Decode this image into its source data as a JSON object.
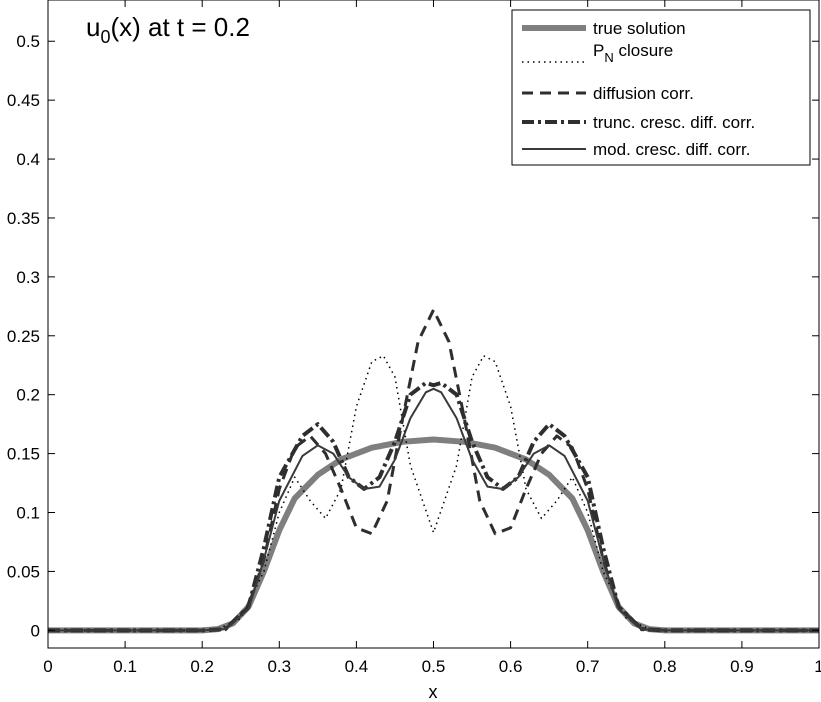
{
  "chart_data": {
    "type": "line",
    "xlabel": "x",
    "ylabel": "",
    "xlim": [
      0,
      1
    ],
    "ylim": [
      -0.015,
      0.535
    ],
    "x_ticks": [
      "0",
      "0.1",
      "0.2",
      "0.3",
      "0.4",
      "0.5",
      "0.6",
      "0.7",
      "0.8",
      "0.9",
      "1"
    ],
    "y_ticks": [
      "0",
      "0.05",
      "0.1",
      "0.15",
      "0.2",
      "0.25",
      "0.3",
      "0.35",
      "0.4",
      "0.45",
      "0.5"
    ],
    "annotation": {
      "base": "u",
      "sub": "0",
      "rest": "(x) at t = 0.2"
    },
    "grid": false,
    "legend_position": "top-right",
    "series": [
      {
        "name": "true solution",
        "style": "thick-solid",
        "color": "#7f7f7f",
        "points": [
          [
            0,
            0
          ],
          [
            0.2,
            0
          ],
          [
            0.22,
            0.001
          ],
          [
            0.24,
            0.006
          ],
          [
            0.26,
            0.02
          ],
          [
            0.28,
            0.05
          ],
          [
            0.3,
            0.085
          ],
          [
            0.32,
            0.112
          ],
          [
            0.35,
            0.132
          ],
          [
            0.38,
            0.145
          ],
          [
            0.42,
            0.155
          ],
          [
            0.46,
            0.16
          ],
          [
            0.5,
            0.162
          ],
          [
            0.54,
            0.16
          ],
          [
            0.58,
            0.155
          ],
          [
            0.62,
            0.145
          ],
          [
            0.65,
            0.132
          ],
          [
            0.68,
            0.112
          ],
          [
            0.7,
            0.085
          ],
          [
            0.72,
            0.05
          ],
          [
            0.74,
            0.02
          ],
          [
            0.76,
            0.006
          ],
          [
            0.78,
            0.001
          ],
          [
            0.8,
            0
          ],
          [
            1,
            0
          ]
        ]
      },
      {
        "name": "P_N closure",
        "label_main": "P",
        "label_sub": "N",
        "label_rest": " closure",
        "style": "dotted",
        "color": "#000000",
        "points": [
          [
            0,
            0
          ],
          [
            0.2,
            0
          ],
          [
            0.22,
            0.001
          ],
          [
            0.25,
            0.01
          ],
          [
            0.28,
            0.05
          ],
          [
            0.3,
            0.1
          ],
          [
            0.32,
            0.13
          ],
          [
            0.34,
            0.11
          ],
          [
            0.36,
            0.095
          ],
          [
            0.38,
            0.12
          ],
          [
            0.4,
            0.19
          ],
          [
            0.42,
            0.228
          ],
          [
            0.435,
            0.233
          ],
          [
            0.45,
            0.215
          ],
          [
            0.47,
            0.14
          ],
          [
            0.5,
            0.083
          ],
          [
            0.53,
            0.14
          ],
          [
            0.55,
            0.215
          ],
          [
            0.565,
            0.233
          ],
          [
            0.58,
            0.228
          ],
          [
            0.6,
            0.19
          ],
          [
            0.62,
            0.12
          ],
          [
            0.64,
            0.095
          ],
          [
            0.66,
            0.11
          ],
          [
            0.68,
            0.13
          ],
          [
            0.7,
            0.1
          ],
          [
            0.72,
            0.05
          ],
          [
            0.75,
            0.01
          ],
          [
            0.78,
            0.001
          ],
          [
            0.8,
            0
          ],
          [
            1,
            0
          ]
        ]
      },
      {
        "name": "diffusion corr.",
        "style": "dashed",
        "color": "#2e2e2e",
        "points": [
          [
            0,
            0
          ],
          [
            0.2,
            0
          ],
          [
            0.23,
            0.001
          ],
          [
            0.26,
            0.02
          ],
          [
            0.28,
            0.06
          ],
          [
            0.3,
            0.12
          ],
          [
            0.32,
            0.155
          ],
          [
            0.34,
            0.165
          ],
          [
            0.36,
            0.15
          ],
          [
            0.38,
            0.12
          ],
          [
            0.4,
            0.087
          ],
          [
            0.42,
            0.082
          ],
          [
            0.44,
            0.11
          ],
          [
            0.46,
            0.18
          ],
          [
            0.48,
            0.245
          ],
          [
            0.5,
            0.272
          ],
          [
            0.52,
            0.245
          ],
          [
            0.54,
            0.18
          ],
          [
            0.56,
            0.11
          ],
          [
            0.58,
            0.082
          ],
          [
            0.6,
            0.087
          ],
          [
            0.62,
            0.12
          ],
          [
            0.64,
            0.15
          ],
          [
            0.66,
            0.165
          ],
          [
            0.68,
            0.155
          ],
          [
            0.7,
            0.12
          ],
          [
            0.72,
            0.06
          ],
          [
            0.74,
            0.02
          ],
          [
            0.77,
            0.001
          ],
          [
            0.8,
            0
          ],
          [
            1,
            0
          ]
        ]
      },
      {
        "name": "trunc. cresc. diff. corr.",
        "style": "dash-dot",
        "color": "#2e2e2e",
        "points": [
          [
            0,
            0
          ],
          [
            0.2,
            0
          ],
          [
            0.23,
            0.001
          ],
          [
            0.26,
            0.02
          ],
          [
            0.28,
            0.07
          ],
          [
            0.3,
            0.13
          ],
          [
            0.33,
            0.165
          ],
          [
            0.35,
            0.175
          ],
          [
            0.37,
            0.16
          ],
          [
            0.39,
            0.13
          ],
          [
            0.41,
            0.12
          ],
          [
            0.43,
            0.13
          ],
          [
            0.45,
            0.16
          ],
          [
            0.47,
            0.2
          ],
          [
            0.49,
            0.21
          ],
          [
            0.5,
            0.208
          ],
          [
            0.51,
            0.21
          ],
          [
            0.53,
            0.2
          ],
          [
            0.55,
            0.16
          ],
          [
            0.57,
            0.13
          ],
          [
            0.59,
            0.12
          ],
          [
            0.61,
            0.13
          ],
          [
            0.63,
            0.16
          ],
          [
            0.65,
            0.175
          ],
          [
            0.67,
            0.165
          ],
          [
            0.7,
            0.13
          ],
          [
            0.72,
            0.07
          ],
          [
            0.74,
            0.02
          ],
          [
            0.77,
            0.001
          ],
          [
            0.8,
            0
          ],
          [
            1,
            0
          ]
        ]
      },
      {
        "name": "mod. cresc. diff. corr.",
        "style": "solid",
        "color": "#3a3a3a",
        "points": [
          [
            0,
            0
          ],
          [
            0.2,
            0
          ],
          [
            0.23,
            0.001
          ],
          [
            0.26,
            0.018
          ],
          [
            0.28,
            0.06
          ],
          [
            0.3,
            0.11
          ],
          [
            0.33,
            0.148
          ],
          [
            0.35,
            0.157
          ],
          [
            0.37,
            0.15
          ],
          [
            0.39,
            0.13
          ],
          [
            0.41,
            0.12
          ],
          [
            0.43,
            0.122
          ],
          [
            0.45,
            0.145
          ],
          [
            0.47,
            0.18
          ],
          [
            0.49,
            0.202
          ],
          [
            0.5,
            0.205
          ],
          [
            0.51,
            0.202
          ],
          [
            0.53,
            0.18
          ],
          [
            0.55,
            0.145
          ],
          [
            0.57,
            0.122
          ],
          [
            0.59,
            0.12
          ],
          [
            0.61,
            0.13
          ],
          [
            0.63,
            0.15
          ],
          [
            0.65,
            0.157
          ],
          [
            0.67,
            0.148
          ],
          [
            0.7,
            0.11
          ],
          [
            0.72,
            0.06
          ],
          [
            0.74,
            0.018
          ],
          [
            0.77,
            0.001
          ],
          [
            0.8,
            0
          ],
          [
            1,
            0
          ]
        ]
      }
    ]
  }
}
